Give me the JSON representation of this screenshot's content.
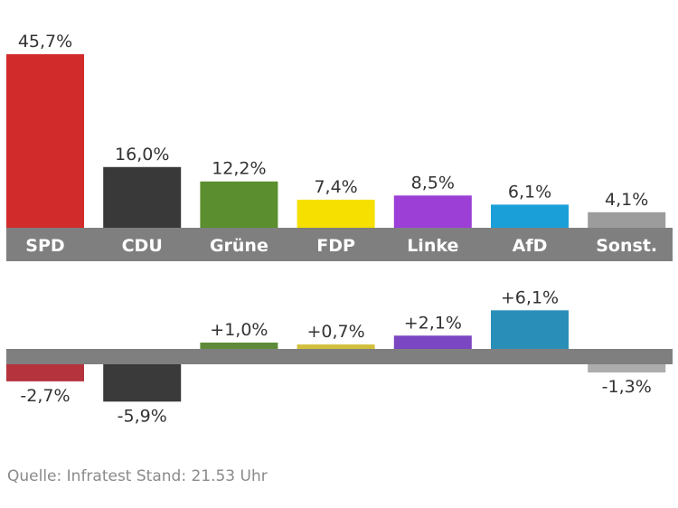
{
  "chart_data": [
    {
      "type": "bar",
      "categories": [
        "SPD",
        "CDU",
        "Grüne",
        "FDP",
        "Linke",
        "AfD",
        "Sonst."
      ],
      "values": [
        45.7,
        16.0,
        12.2,
        7.4,
        8.5,
        6.1,
        4.1
      ],
      "data_labels": [
        "45,7%",
        "16,0%",
        "12,2%",
        "7,4%",
        "8,5%",
        "6,1%",
        "4,1%"
      ],
      "colors": [
        "#d22b2b",
        "#393939",
        "#5b8e2e",
        "#f5e000",
        "#9b3fd6",
        "#1b9fd8",
        "#9c9c9c"
      ],
      "ylim": [
        0,
        45.7
      ]
    },
    {
      "type": "bar",
      "categories": [
        "SPD",
        "CDU",
        "Grüne",
        "FDP",
        "Linke",
        "AfD",
        "Sonst."
      ],
      "values": [
        -2.7,
        -5.9,
        1.0,
        0.7,
        2.1,
        6.1,
        -1.3
      ],
      "data_labels": [
        "-2,7%",
        "-5,9%",
        "+1,0%",
        "+0,7%",
        "+2,1%",
        "+6,1%",
        "-1,3%"
      ],
      "colors": [
        "#b5333d",
        "#3a3a3a",
        "#5f8a3a",
        "#d2c03c",
        "#7b46c2",
        "#2a8fb8",
        "#adadad"
      ],
      "ylim": [
        -5.9,
        6.1
      ]
    }
  ],
  "axis_color": "#7f7f7f",
  "footer": {
    "source": "Quelle: Infratest Stand: 21.53 Uhr"
  }
}
